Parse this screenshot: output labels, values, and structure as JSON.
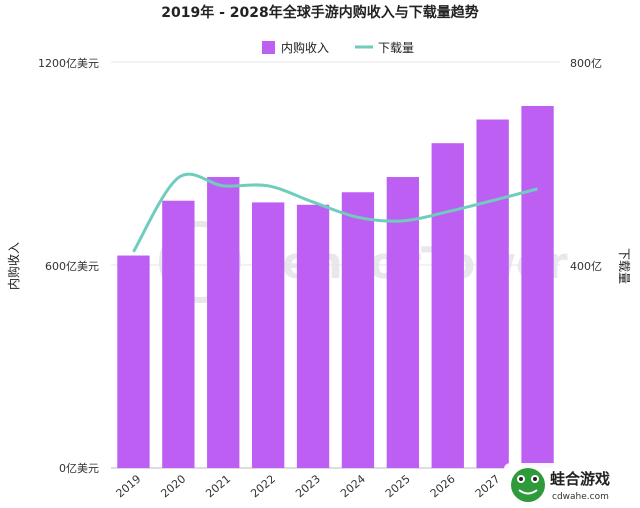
{
  "chart_data": {
    "type": "bar",
    "title": "2019年 - 2028年全球手游内购收入与下载量趋势",
    "categories": [
      "2019",
      "2020",
      "2021",
      "2022",
      "2023",
      "2024",
      "2025",
      "2026",
      "2027",
      "2028"
    ],
    "series": [
      {
        "name": "内购收入",
        "type": "bar",
        "axis": "left",
        "color": "#bd5ff2",
        "values": [
          628,
          790,
          860,
          785,
          778,
          815,
          860,
          960,
          1030,
          1070
        ]
      },
      {
        "name": "下载量",
        "type": "line",
        "axis": "right",
        "color": "#6fcdbe",
        "values": [
          426,
          572,
          556,
          556,
          524,
          494,
          487,
          505,
          527,
          550
        ]
      }
    ],
    "ylabel": "内购收入",
    "ylim": [
      0,
      1200
    ],
    "y_ticks": [
      "0亿美元",
      "600亿美元",
      "1200亿美元"
    ],
    "y2label": "下载量",
    "y2lim": [
      0,
      800
    ],
    "y2_ticks": [
      "400亿",
      "800亿"
    ],
    "legend_position": "top-center",
    "watermark": "SensorTower",
    "source_logo": {
      "name": "蛙合游戏",
      "url": "cdwahe.com"
    }
  }
}
